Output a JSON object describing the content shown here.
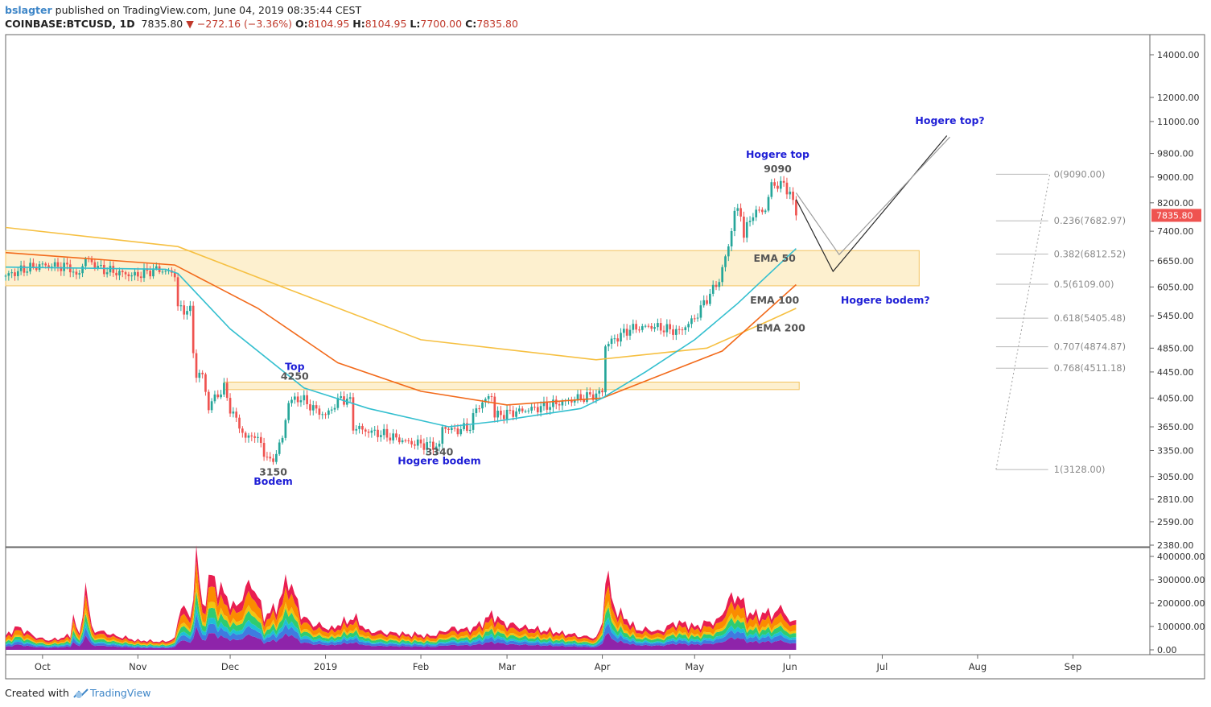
{
  "header": {
    "author": "bslagter",
    "published_text": "published on TradingView.com, June 04, 2019 08:35:44 CEST",
    "symbol": "COINBASE:BTCUSD, 1D",
    "last": "7835.80",
    "change": "−272.16 (−3.36%)",
    "open_label": "O:",
    "open": "8104.95",
    "high_label": "H:",
    "high": "8104.95",
    "low_label": "L:",
    "low": "7700.00",
    "close_label": "C:",
    "close": "7835.80"
  },
  "footer": {
    "created_with": "Created with",
    "brand": "TradingView"
  },
  "colors": {
    "up": "#26a69a",
    "down": "#ef5350",
    "ema50": "#33bfcf",
    "ema100": "#f26a1b",
    "ema200": "#f6c042",
    "zone_fill": "#fdf0cf",
    "zone_stroke": "#f3c35f",
    "annotation_blue": "#1f1fd6",
    "annotation_gray": "#555555"
  },
  "chart_data": [
    {
      "type": "candlestick",
      "symbol": "COINBASE:BTCUSD",
      "interval": "1D",
      "y_scale": "log",
      "ylim": [
        2380,
        14000
      ],
      "y_ticks": [
        "14000.00",
        "12000.00",
        "11000.00",
        "9800.00",
        "9000.00",
        "8200.00",
        "7400.00",
        "6650.00",
        "6050.00",
        "5450.00",
        "4850.00",
        "4450.00",
        "4050.00",
        "3650.00",
        "3350.00",
        "3050.00",
        "2810.00",
        "2590.00",
        "2380.00"
      ],
      "x_ticks": [
        "Oct",
        "Nov",
        "Dec",
        "2019",
        "Feb",
        "Mar",
        "Apr",
        "May",
        "Jun",
        "Jul",
        "Aug",
        "Sep"
      ],
      "x_range": [
        "2018-09-19",
        "2019-09-26"
      ],
      "last_price_label": "7835.80",
      "close_path": [
        [
          "2018-09-19",
          6300
        ],
        [
          "2018-09-25",
          6450
        ],
        [
          "2018-10-01",
          6550
        ],
        [
          "2018-10-10",
          6500
        ],
        [
          "2018-10-12",
          6250
        ],
        [
          "2018-10-15",
          6700
        ],
        [
          "2018-10-20",
          6450
        ],
        [
          "2018-10-31",
          6300
        ],
        [
          "2018-11-07",
          6450
        ],
        [
          "2018-11-13",
          6350
        ],
        [
          "2018-11-14",
          5600
        ],
        [
          "2018-11-18",
          5550
        ],
        [
          "2018-11-19",
          4800
        ],
        [
          "2018-11-20",
          4400
        ],
        [
          "2018-11-22",
          4400
        ],
        [
          "2018-11-24",
          3900
        ],
        [
          "2018-11-25",
          4000
        ],
        [
          "2018-11-29",
          4200
        ],
        [
          "2018-12-01",
          3900
        ],
        [
          "2018-12-06",
          3500
        ],
        [
          "2018-12-09",
          3550
        ],
        [
          "2018-12-14",
          3200
        ],
        [
          "2018-12-15",
          3250
        ],
        [
          "2018-12-18",
          3500
        ],
        [
          "2018-12-20",
          4000
        ],
        [
          "2018-12-24",
          4050
        ],
        [
          "2018-12-28",
          3900
        ],
        [
          "2019-01-01",
          3800
        ],
        [
          "2019-01-06",
          4050
        ],
        [
          "2019-01-09",
          4000
        ],
        [
          "2019-01-10",
          3650
        ],
        [
          "2019-01-14",
          3600
        ],
        [
          "2019-01-20",
          3550
        ],
        [
          "2019-01-28",
          3450
        ],
        [
          "2019-02-07",
          3400
        ],
        [
          "2019-02-08",
          3650
        ],
        [
          "2019-02-12",
          3600
        ],
        [
          "2019-02-17",
          3650
        ],
        [
          "2019-02-19",
          3900
        ],
        [
          "2019-02-24",
          4100
        ],
        [
          "2019-02-25",
          3800
        ],
        [
          "2019-03-10",
          3900
        ],
        [
          "2019-03-20",
          4000
        ],
        [
          "2019-03-30",
          4100
        ],
        [
          "2019-04-01",
          4150
        ],
        [
          "2019-04-02",
          4900
        ],
        [
          "2019-04-10",
          5200
        ],
        [
          "2019-04-17",
          5250
        ],
        [
          "2019-04-26",
          5150
        ],
        [
          "2019-05-01",
          5400
        ],
        [
          "2019-05-09",
          6200
        ],
        [
          "2019-05-12",
          7000
        ],
        [
          "2019-05-14",
          7950
        ],
        [
          "2019-05-16",
          7900
        ],
        [
          "2019-05-17",
          7300
        ],
        [
          "2019-05-20",
          7900
        ],
        [
          "2019-05-24",
          8000
        ],
        [
          "2019-05-26",
          8750
        ],
        [
          "2019-05-30",
          8750
        ],
        [
          "2019-06-01",
          8500
        ],
        [
          "2019-06-03",
          7835.8
        ]
      ],
      "ema50_path": [
        [
          "2018-09-19",
          6500
        ],
        [
          "2018-11-10",
          6450
        ],
        [
          "2018-11-14",
          6350
        ],
        [
          "2018-12-01",
          5200
        ],
        [
          "2018-12-25",
          4200
        ],
        [
          "2019-01-15",
          3900
        ],
        [
          "2019-02-10",
          3650
        ],
        [
          "2019-02-25",
          3720
        ],
        [
          "2019-03-25",
          3900
        ],
        [
          "2019-04-01",
          4050
        ],
        [
          "2019-04-15",
          4450
        ],
        [
          "2019-05-01",
          5000
        ],
        [
          "2019-05-15",
          5700
        ],
        [
          "2019-06-03",
          6950
        ]
      ],
      "ema100_path": [
        [
          "2018-09-19",
          6850
        ],
        [
          "2018-11-13",
          6550
        ],
        [
          "2018-12-10",
          5600
        ],
        [
          "2019-01-05",
          4600
        ],
        [
          "2019-02-01",
          4150
        ],
        [
          "2019-03-01",
          3950
        ],
        [
          "2019-04-01",
          4050
        ],
        [
          "2019-04-20",
          4400
        ],
        [
          "2019-05-10",
          4800
        ],
        [
          "2019-06-03",
          6100
        ]
      ],
      "ema200_path": [
        [
          "2018-09-19",
          7500
        ],
        [
          "2018-11-14",
          7000
        ],
        [
          "2018-12-20",
          6000
        ],
        [
          "2019-02-01",
          5000
        ],
        [
          "2019-03-30",
          4650
        ],
        [
          "2019-05-05",
          4850
        ],
        [
          "2019-05-25",
          5350
        ],
        [
          "2019-06-03",
          5600
        ]
      ],
      "ema_labels": [
        "EMA 50",
        "EMA 100",
        "EMA 200"
      ],
      "zones": [
        {
          "x": [
            "2018-09-19",
            "2019-07-13"
          ],
          "y": [
            6075,
            6900
          ]
        },
        {
          "x": [
            "2018-11-29",
            "2019-06-04"
          ],
          "y": [
            4175,
            4290
          ]
        }
      ],
      "annotations": [
        {
          "text": "Hogere top",
          "x": "2019-05-28",
          "y": 9650,
          "color": "blue"
        },
        {
          "text": "9090",
          "x": "2019-05-28",
          "y": 9150,
          "color": "gray"
        },
        {
          "text": "Top",
          "x": "2018-12-22",
          "y": 4480,
          "color": "blue"
        },
        {
          "text": "4250",
          "x": "2018-12-22",
          "y": 4330,
          "color": "gray"
        },
        {
          "text": "3150",
          "x": "2018-12-15",
          "y": 3060,
          "color": "gray"
        },
        {
          "text": "Bodem",
          "x": "2018-12-15",
          "y": 2960,
          "color": "blue"
        },
        {
          "text": "3340",
          "x": "2019-02-07",
          "y": 3290,
          "color": "gray"
        },
        {
          "text": "Hogere bodem",
          "x": "2019-02-07",
          "y": 3190,
          "color": "blue"
        },
        {
          "text": "Hogere top?",
          "x": "2019-07-23",
          "y": 10900,
          "color": "blue"
        },
        {
          "text": "Hogere bodem?",
          "x": "2019-07-02",
          "y": 5700,
          "color": "blue"
        },
        {
          "text": "EMA 50",
          "x": "2019-05-27",
          "y": 6630,
          "color": "gray"
        },
        {
          "text": "EMA 100",
          "x": "2019-05-27",
          "y": 5700,
          "color": "gray"
        },
        {
          "text": "EMA 200",
          "x": "2019-05-29",
          "y": 5150,
          "color": "gray"
        }
      ],
      "projection_paths": [
        [
          [
            "2019-06-03",
            8300
          ],
          [
            "2019-06-15",
            6400
          ],
          [
            "2019-07-22",
            10450
          ]
        ],
        [
          [
            "2019-06-03",
            8500
          ],
          [
            "2019-06-17",
            6800
          ],
          [
            "2019-07-23",
            10400
          ]
        ]
      ],
      "fibonacci": {
        "x": [
          "2019-08-07",
          "2019-08-14"
        ],
        "levels": [
          {
            "label": "0(9090.00)",
            "price": 9090
          },
          {
            "label": "0.236(7682.97)",
            "price": 7682.97
          },
          {
            "label": "0.382(6812.52)",
            "price": 6812.52
          },
          {
            "label": "0.5(6109.00)",
            "price": 6109
          },
          {
            "label": "0.618(5405.48)",
            "price": 5405.48
          },
          {
            "label": "0.707(4874.87)",
            "price": 4874.87
          },
          {
            "label": "0.768(4511.18)",
            "price": 4511.18
          },
          {
            "label": "1(3128.00)",
            "price": 3128
          }
        ]
      }
    },
    {
      "type": "area",
      "stacked": true,
      "ylim": [
        0,
        400000
      ],
      "y_ticks": [
        "400000.00",
        "300000.00",
        "200000.00",
        "100000.00",
        "0.00"
      ],
      "x_range": [
        "2018-09-19",
        "2019-09-26"
      ],
      "series_colors": [
        "#8e24aa",
        "#3f7be0",
        "#1ec0d6",
        "#2ecc71",
        "#f1c40f",
        "#fb8c00",
        "#e91e50"
      ],
      "series_shares": [
        0.22,
        0.12,
        0.08,
        0.13,
        0.08,
        0.2,
        0.17
      ],
      "total_volume": [
        [
          "2018-09-19",
          60000
        ],
        [
          "2018-09-23",
          100000
        ],
        [
          "2018-09-28",
          60000
        ],
        [
          "2018-10-03",
          40000
        ],
        [
          "2018-10-10",
          60000
        ],
        [
          "2018-10-11",
          150000
        ],
        [
          "2018-10-13",
          60000
        ],
        [
          "2018-10-15",
          280000
        ],
        [
          "2018-10-17",
          90000
        ],
        [
          "2018-10-25",
          60000
        ],
        [
          "2018-11-01",
          40000
        ],
        [
          "2018-11-10",
          35000
        ],
        [
          "2018-11-13",
          50000
        ],
        [
          "2018-11-15",
          200000
        ],
        [
          "2018-11-18",
          130000
        ],
        [
          "2018-11-20",
          410000
        ],
        [
          "2018-11-22",
          180000
        ],
        [
          "2018-11-25",
          330000
        ],
        [
          "2018-11-28",
          250000
        ],
        [
          "2018-12-03",
          180000
        ],
        [
          "2018-12-08",
          300000
        ],
        [
          "2018-12-12",
          140000
        ],
        [
          "2018-12-17",
          200000
        ],
        [
          "2018-12-20",
          320000
        ],
        [
          "2018-12-24",
          150000
        ],
        [
          "2018-12-28",
          110000
        ],
        [
          "2019-01-03",
          90000
        ],
        [
          "2019-01-10",
          140000
        ],
        [
          "2019-01-15",
          80000
        ],
        [
          "2019-01-25",
          70000
        ],
        [
          "2019-02-05",
          60000
        ],
        [
          "2019-02-10",
          90000
        ],
        [
          "2019-02-18",
          90000
        ],
        [
          "2019-02-24",
          150000
        ],
        [
          "2019-03-01",
          110000
        ],
        [
          "2019-03-10",
          90000
        ],
        [
          "2019-03-20",
          70000
        ],
        [
          "2019-03-30",
          50000
        ],
        [
          "2019-04-01",
          120000
        ],
        [
          "2019-04-02",
          330000
        ],
        [
          "2019-04-05",
          180000
        ],
        [
          "2019-04-12",
          90000
        ],
        [
          "2019-04-20",
          80000
        ],
        [
          "2019-04-25",
          120000
        ],
        [
          "2019-05-01",
          100000
        ],
        [
          "2019-05-09",
          130000
        ],
        [
          "2019-05-12",
          210000
        ],
        [
          "2019-05-15",
          240000
        ],
        [
          "2019-05-18",
          160000
        ],
        [
          "2019-05-22",
          150000
        ],
        [
          "2019-05-27",
          160000
        ],
        [
          "2019-05-30",
          180000
        ],
        [
          "2019-06-01",
          110000
        ],
        [
          "2019-06-03",
          140000
        ]
      ]
    }
  ]
}
